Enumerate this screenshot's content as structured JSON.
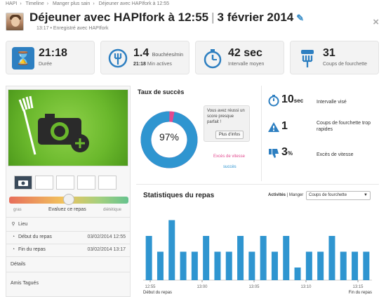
{
  "breadcrumb": [
    "HAPI",
    "Timeline",
    "Manger plus sain",
    "Déjeuner avec HAPIfork à 12:55"
  ],
  "header": {
    "title": "Déjeuner avec HAPIfork à 12:55",
    "separator": "|",
    "date": "3 février 2014",
    "subtitle": "13:17 • Enregistré avec HAPIfork",
    "close": "×"
  },
  "stats": [
    {
      "value": "21:18",
      "unit": "",
      "label": "Durée",
      "label_value": "",
      "icon": "hourglass-icon"
    },
    {
      "value": "1.4",
      "unit": "Bouchées/min",
      "label": "Min actives",
      "label_value": "21:18",
      "icon": "fork-refresh-icon"
    },
    {
      "value": "42 sec",
      "unit": "",
      "label": "Intervalle moyen",
      "label_value": "",
      "icon": "stopwatch-icon"
    },
    {
      "value": "31",
      "unit": "",
      "label": "Coups de fourchette",
      "label_value": "",
      "icon": "fork-icon"
    }
  ],
  "left": {
    "rating_bad": "gras",
    "rating_label": "Evaluez ce repas",
    "rating_good": "diététique",
    "rating_level": 0.5,
    "place_label": "Lieu",
    "start_label": "Début du repas",
    "start_date": "03/02/2014 12:55",
    "end_label": "Fin du repas",
    "end_date": "03/02/2014 13:17",
    "details_label": "Détails",
    "friends_label": "Amis Tagués"
  },
  "success": {
    "title": "Taux de succès",
    "percent": 97,
    "percent_label": "97%",
    "tip_text": "Vous avez réussi un score presque parfait !",
    "tip_button": "Plus d'infos",
    "legend_excess": "Excès de vitesse",
    "legend_success": "succès",
    "color_success": "#2f95d0",
    "color_excess": "#e24a8f"
  },
  "metrics": [
    {
      "value": "10",
      "unit": "sec",
      "label": "Intervalle visé",
      "icon": "stopwatch-icon"
    },
    {
      "value": "1",
      "unit": "",
      "label": "Coups de fourchette trop rapides",
      "icon": "warning-icon"
    },
    {
      "value": "3",
      "unit": "%",
      "label": "Excès de vitesse",
      "icon": "thumbs-down-icon"
    }
  ],
  "chart": {
    "title": "Statistiques du repas",
    "filter_activities": "Activités",
    "filter_eat": "Manger",
    "select_value": "Coups de fourchette",
    "start_label": "Début du repas",
    "end_label": "Fin du repas"
  },
  "chart_data": {
    "type": "bar",
    "title": "Statistiques du repas",
    "x_ticks": [
      "12:55",
      "13:00",
      "13:05",
      "13:10",
      "13:15"
    ],
    "values": [
      0.7,
      0.45,
      0.95,
      0.45,
      0.45,
      0.7,
      0.45,
      0.45,
      0.7,
      0.45,
      0.7,
      0.45,
      0.7,
      0.2,
      0.45,
      0.45,
      0.7,
      0.45,
      0.45,
      0.45
    ],
    "bar_color": "#2f95d0",
    "ylim": [
      0,
      1
    ]
  }
}
